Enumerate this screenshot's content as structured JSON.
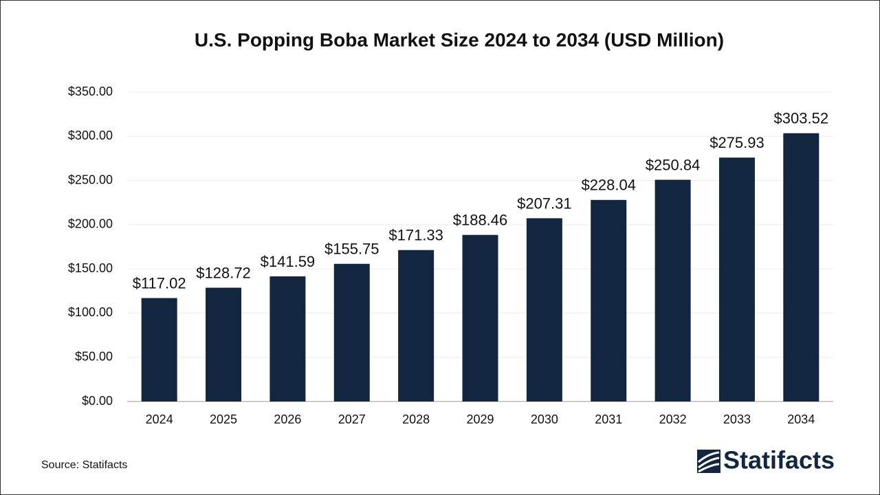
{
  "chart_data": {
    "type": "bar",
    "title": "U.S. Popping Boba Market Size 2024 to 2034  (USD Million)",
    "categories": [
      "2024",
      "2025",
      "2026",
      "2027",
      "2028",
      "2029",
      "2030",
      "2031",
      "2032",
      "2033",
      "2034"
    ],
    "values": [
      117.02,
      128.72,
      141.59,
      155.75,
      171.33,
      188.46,
      207.31,
      228.04,
      250.84,
      275.93,
      303.52
    ],
    "value_labels": [
      "$117.02",
      "$128.72",
      "$141.59",
      "$155.75",
      "$171.33",
      "$188.46",
      "$207.31",
      "$228.04",
      "$250.84",
      "$275.93",
      "$303.52"
    ],
    "color": "#12263f",
    "ylim": [
      0,
      350
    ],
    "yticks": [
      {
        "value": 0,
        "label": "$0.00"
      },
      {
        "value": 50,
        "label": "$50.00"
      },
      {
        "value": 100,
        "label": "$100.00"
      },
      {
        "value": 150,
        "label": "$150.00"
      },
      {
        "value": 200,
        "label": "$200.00"
      },
      {
        "value": 250,
        "label": "$250.00"
      },
      {
        "value": 300,
        "label": "$300.00"
      },
      {
        "value": 350,
        "label": "$350.00"
      }
    ],
    "grid": true,
    "source": "Source: Statifacts",
    "brand": "Statifacts"
  }
}
